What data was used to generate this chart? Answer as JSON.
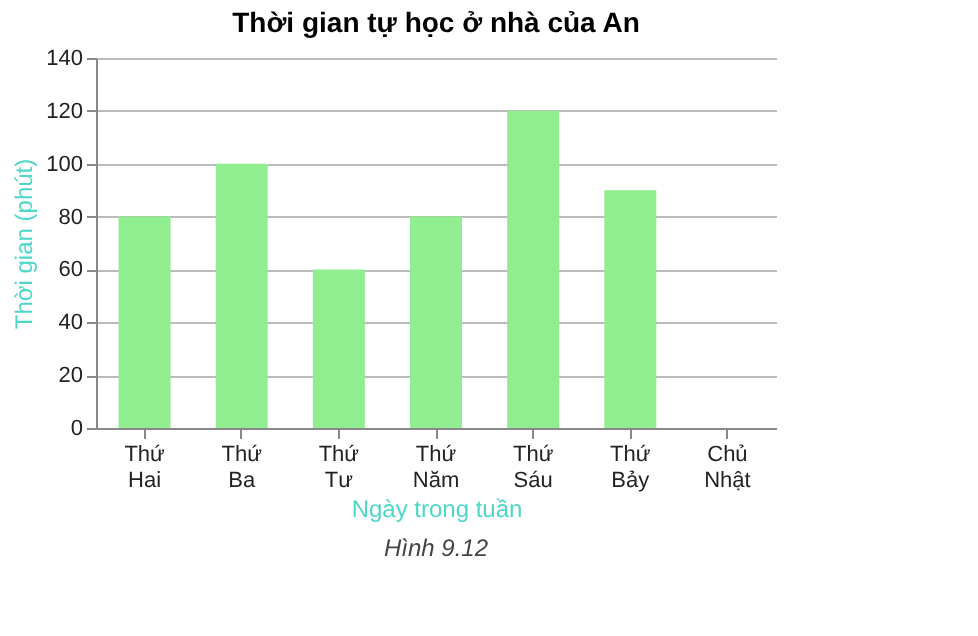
{
  "chart_data": {
    "type": "bar",
    "title": "Thời gian tự học ở nhà của An",
    "xlabel": "Ngày trong tuần",
    "ylabel": "Thời gian (phút)",
    "categories": [
      "Thứ Hai",
      "Thứ Ba",
      "Thứ Tư",
      "Thứ Năm",
      "Thứ Sáu",
      "Thứ Bảy",
      "Chủ Nhật"
    ],
    "values": [
      80,
      100,
      60,
      80,
      120,
      90,
      0
    ],
    "color": "#90ee90",
    "ylim": [
      0,
      140
    ],
    "yticks": [
      0,
      20,
      40,
      60,
      80,
      100,
      120,
      140
    ],
    "grid": "y",
    "annotations": [
      "Hình 9.12"
    ]
  }
}
